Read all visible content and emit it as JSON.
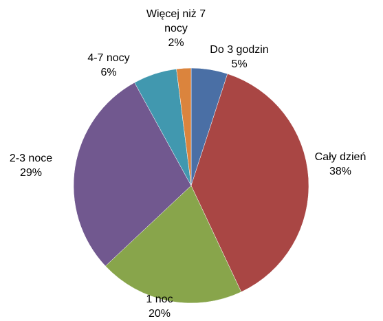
{
  "chart_data": {
    "type": "pie",
    "categories": [
      "Do 3 godzin",
      "Cały dzień",
      "1 noc",
      "2-3 noce",
      "4-7 nocy",
      "Więcej niż 7 nocy"
    ],
    "values": [
      5,
      38,
      20,
      29,
      6,
      2
    ],
    "value_labels": [
      "5%",
      "38%",
      "20%",
      "29%",
      "6%",
      "2%"
    ],
    "colors": [
      "#4a6fa5",
      "#a94644",
      "#88a54b",
      "#71588f",
      "#4198af",
      "#db843d"
    ]
  }
}
